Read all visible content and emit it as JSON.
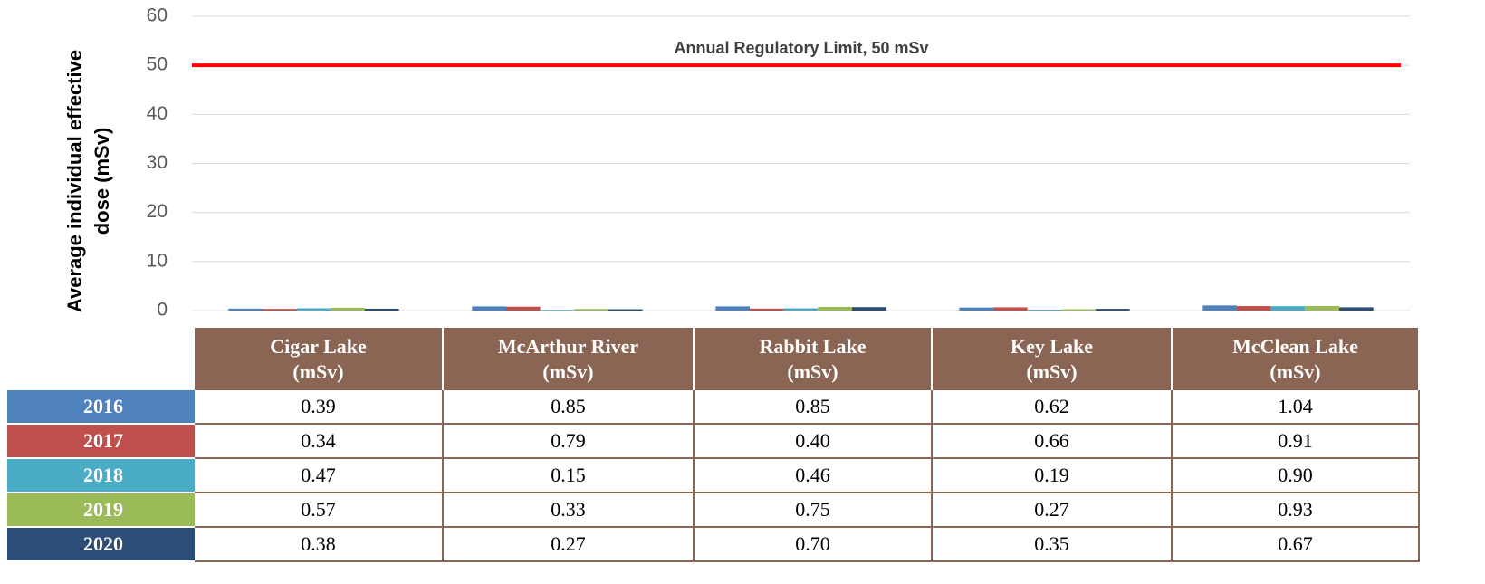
{
  "chart_data": {
    "type": "bar",
    "y_label": "Average individual effective dose (mSv)",
    "categories": [
      "Cigar Lake\n(mSv)",
      "McArthur River\n(mSv)",
      "Rabbit Lake\n(mSv)",
      "Key Lake\n(mSv)",
      "McClean Lake\n(mSv)"
    ],
    "series": [
      {
        "name": "2016",
        "color": "#4f81bd",
        "values": [
          0.39,
          0.85,
          0.85,
          0.62,
          1.04
        ],
        "value_labels": [
          "0.39",
          "0.85",
          "0.85",
          "0.62",
          "1.04"
        ]
      },
      {
        "name": "2017",
        "color": "#c0504d",
        "values": [
          0.34,
          0.79,
          0.4,
          0.66,
          0.91
        ],
        "value_labels": [
          "0.34",
          "0.79",
          "0.40",
          "0.66",
          "0.91"
        ]
      },
      {
        "name": "2018",
        "color": "#4bacc6",
        "values": [
          0.47,
          0.15,
          0.46,
          0.19,
          0.9
        ],
        "value_labels": [
          "0.47",
          "0.15",
          "0.46",
          "0.19",
          "0.90"
        ]
      },
      {
        "name": "2019",
        "color": "#9bbb59",
        "values": [
          0.57,
          0.33,
          0.75,
          0.27,
          0.93
        ],
        "value_labels": [
          "0.57",
          "0.33",
          "0.75",
          "0.27",
          "0.93"
        ]
      },
      {
        "name": "2020",
        "color": "#2c4d75",
        "values": [
          0.38,
          0.27,
          0.7,
          0.35,
          0.67
        ],
        "value_labels": [
          "0.38",
          "0.27",
          "0.70",
          "0.35",
          "0.67"
        ]
      }
    ],
    "reference_line": {
      "value": 50,
      "label": "Annual Regulatory Limit, 50 mSv",
      "color": "#ff0000"
    },
    "ylim": [
      0,
      60
    ],
    "yticks": [
      0,
      10,
      20,
      30,
      40,
      50,
      60
    ],
    "grid": true
  }
}
